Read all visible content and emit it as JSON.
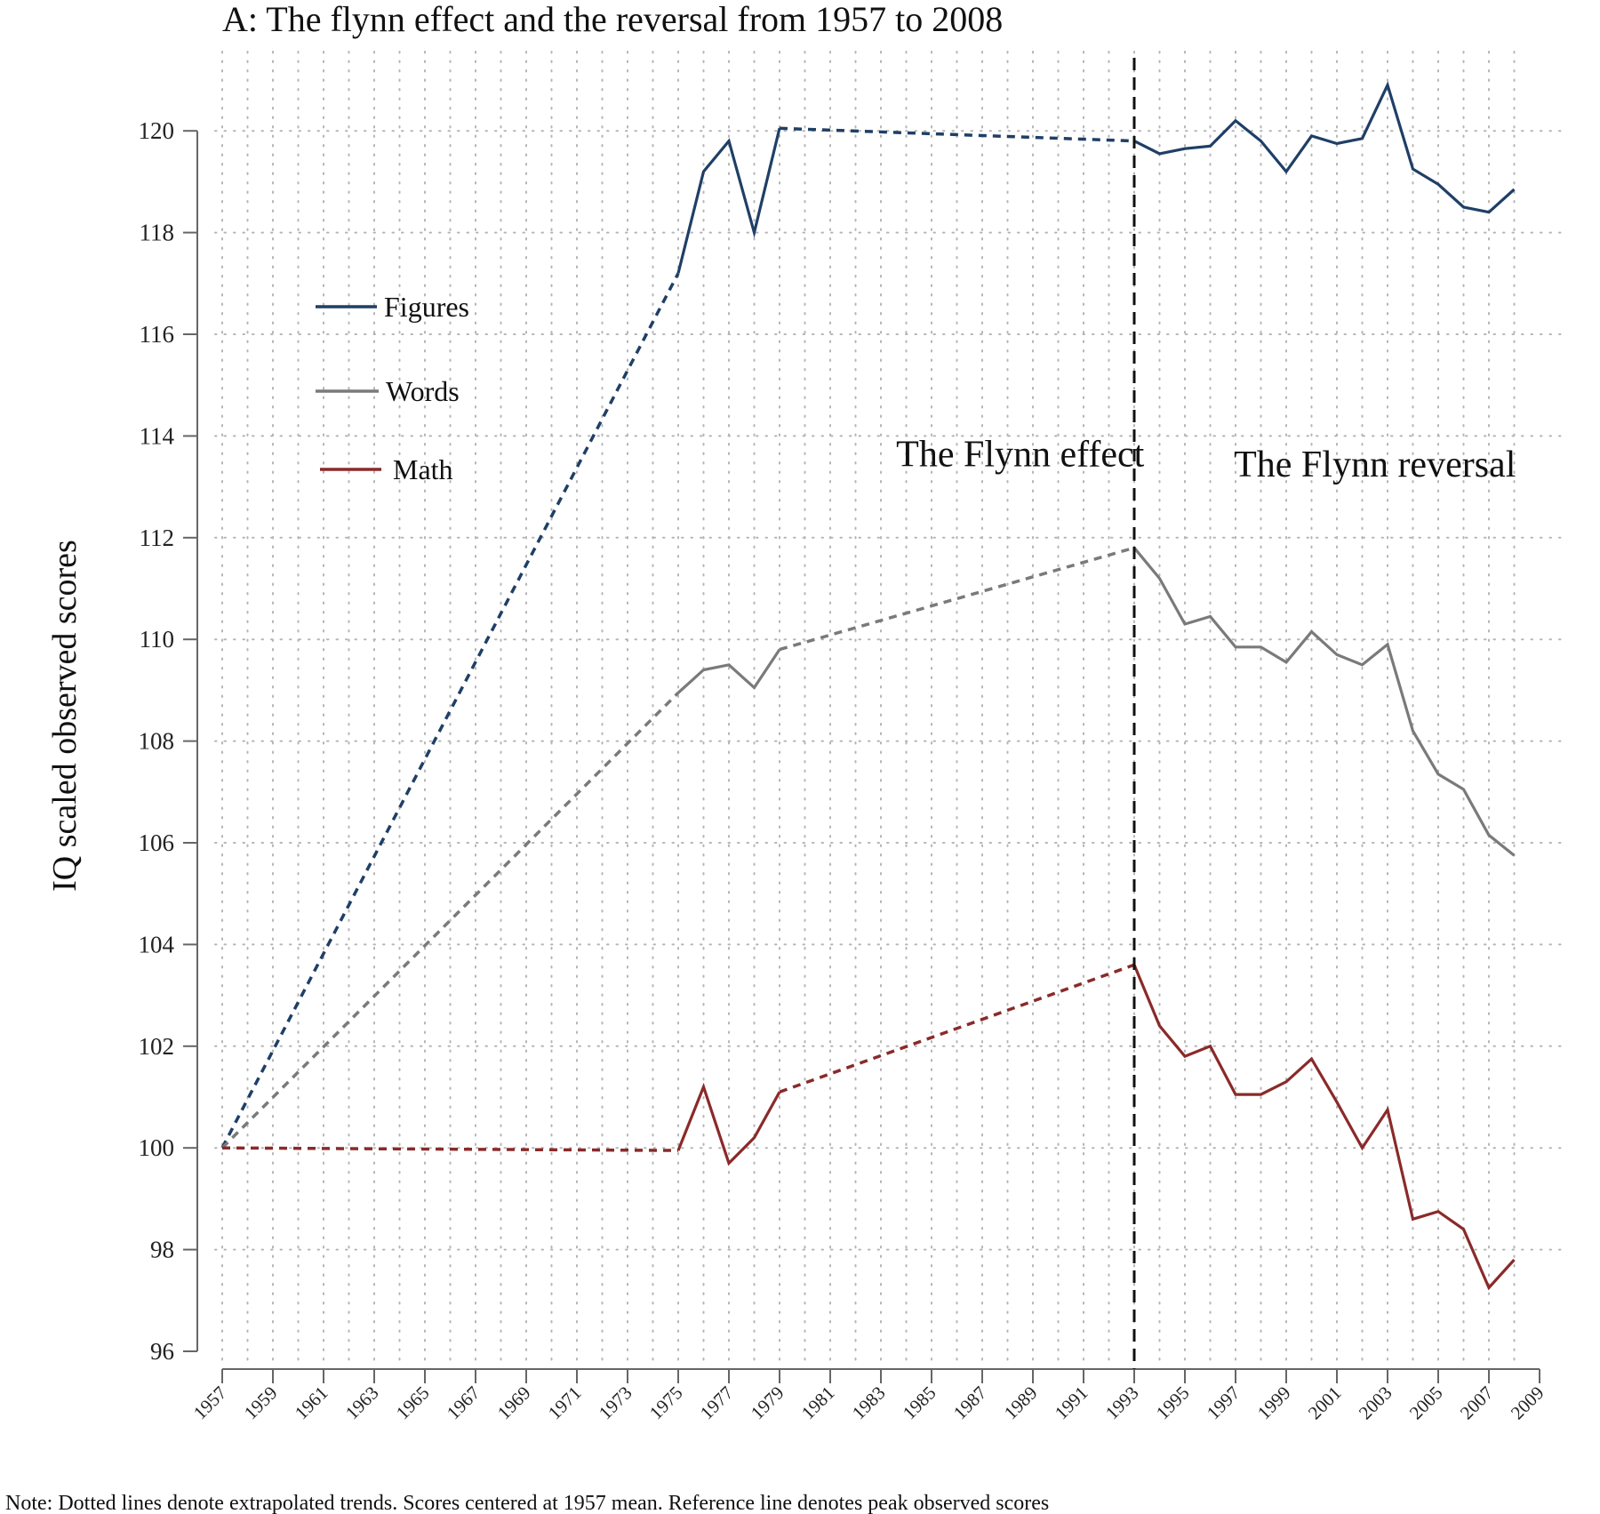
{
  "chart_data": {
    "type": "line",
    "title": "A: The flynn effect and the reversal from 1957 to 2008",
    "xlabel": "",
    "ylabel": "IQ scaled observed scores",
    "xlim": [
      1957,
      2009
    ],
    "ylim": [
      96,
      121
    ],
    "x_ticks": [
      1957,
      1959,
      1961,
      1963,
      1965,
      1967,
      1969,
      1971,
      1973,
      1975,
      1977,
      1979,
      1981,
      1983,
      1985,
      1987,
      1989,
      1991,
      1993,
      1995,
      1997,
      1999,
      2001,
      2003,
      2005,
      2007,
      2009
    ],
    "y_ticks": [
      96,
      98,
      100,
      102,
      104,
      106,
      108,
      110,
      112,
      114,
      116,
      118,
      120
    ],
    "grid": true,
    "legend_position": "upper-left",
    "reference_line": {
      "x": 1993,
      "style": "dashed"
    },
    "region_labels": [
      {
        "text": "The Flynn effect",
        "x": 1988.5,
        "y": 113.4
      },
      {
        "text": "The Flynn reversal",
        "x": 2002.5,
        "y": 113.2
      }
    ],
    "note": "Note: Dotted lines denote extrapolated trends. Scores centered at 1957 mean. Reference line denotes peak observed scores",
    "series": [
      {
        "name": "Figures",
        "color": "#1f3f66",
        "extrapolated": [
          [
            1957,
            100
          ],
          [
            1975,
            117.2
          ]
        ],
        "extrapolated_2": [
          [
            1979,
            120.05
          ],
          [
            1993,
            119.8
          ]
        ],
        "observed_1": [
          [
            1975,
            117.2
          ],
          [
            1976,
            119.2
          ],
          [
            1977,
            119.8
          ],
          [
            1978,
            118.0
          ],
          [
            1979,
            120.05
          ]
        ],
        "observed_2": [
          [
            1993,
            119.8
          ],
          [
            1994,
            119.55
          ],
          [
            1995,
            119.65
          ],
          [
            1996,
            119.7
          ],
          [
            1997,
            120.2
          ],
          [
            1998,
            119.8
          ],
          [
            1999,
            119.2
          ],
          [
            2000,
            119.9
          ],
          [
            2001,
            119.75
          ],
          [
            2002,
            119.85
          ],
          [
            2003,
            120.9
          ],
          [
            2004,
            119.25
          ],
          [
            2005,
            118.95
          ],
          [
            2006,
            118.5
          ],
          [
            2007,
            118.4
          ],
          [
            2008,
            118.85
          ]
        ]
      },
      {
        "name": "Words",
        "color": "#7a7a7a",
        "extrapolated": [
          [
            1957,
            100
          ],
          [
            1975,
            108.95
          ]
        ],
        "extrapolated_2": [
          [
            1979,
            109.8
          ],
          [
            1993,
            111.8
          ]
        ],
        "observed_1": [
          [
            1975,
            108.95
          ],
          [
            1976,
            109.4
          ],
          [
            1977,
            109.5
          ],
          [
            1978,
            109.05
          ],
          [
            1979,
            109.8
          ]
        ],
        "observed_2": [
          [
            1993,
            111.8
          ],
          [
            1994,
            111.2
          ],
          [
            1995,
            110.3
          ],
          [
            1996,
            110.45
          ],
          [
            1997,
            109.85
          ],
          [
            1998,
            109.85
          ],
          [
            1999,
            109.55
          ],
          [
            2000,
            110.15
          ],
          [
            2001,
            109.7
          ],
          [
            2002,
            109.5
          ],
          [
            2003,
            109.9
          ],
          [
            2004,
            108.2
          ],
          [
            2005,
            107.35
          ],
          [
            2006,
            107.05
          ],
          [
            2007,
            106.15
          ],
          [
            2008,
            105.75
          ]
        ]
      },
      {
        "name": "Math",
        "color": "#8a2a2a",
        "extrapolated": [
          [
            1957,
            100
          ],
          [
            1975,
            99.95
          ]
        ],
        "extrapolated_2": [
          [
            1979,
            101.1
          ],
          [
            1993,
            103.6
          ]
        ],
        "observed_1": [
          [
            1975,
            99.95
          ],
          [
            1976,
            101.2
          ],
          [
            1977,
            99.7
          ],
          [
            1978,
            100.2
          ],
          [
            1979,
            101.1
          ]
        ],
        "observed_2": [
          [
            1993,
            103.6
          ],
          [
            1994,
            102.4
          ],
          [
            1995,
            101.8
          ],
          [
            1996,
            102.0
          ],
          [
            1997,
            101.05
          ],
          [
            1998,
            101.05
          ],
          [
            1999,
            101.3
          ],
          [
            2000,
            101.75
          ],
          [
            2001,
            100.9
          ],
          [
            2002,
            100.0
          ],
          [
            2003,
            100.75
          ],
          [
            2004,
            98.6
          ],
          [
            2005,
            98.75
          ],
          [
            2006,
            98.4
          ],
          [
            2007,
            97.25
          ],
          [
            2008,
            97.8
          ]
        ]
      }
    ]
  }
}
